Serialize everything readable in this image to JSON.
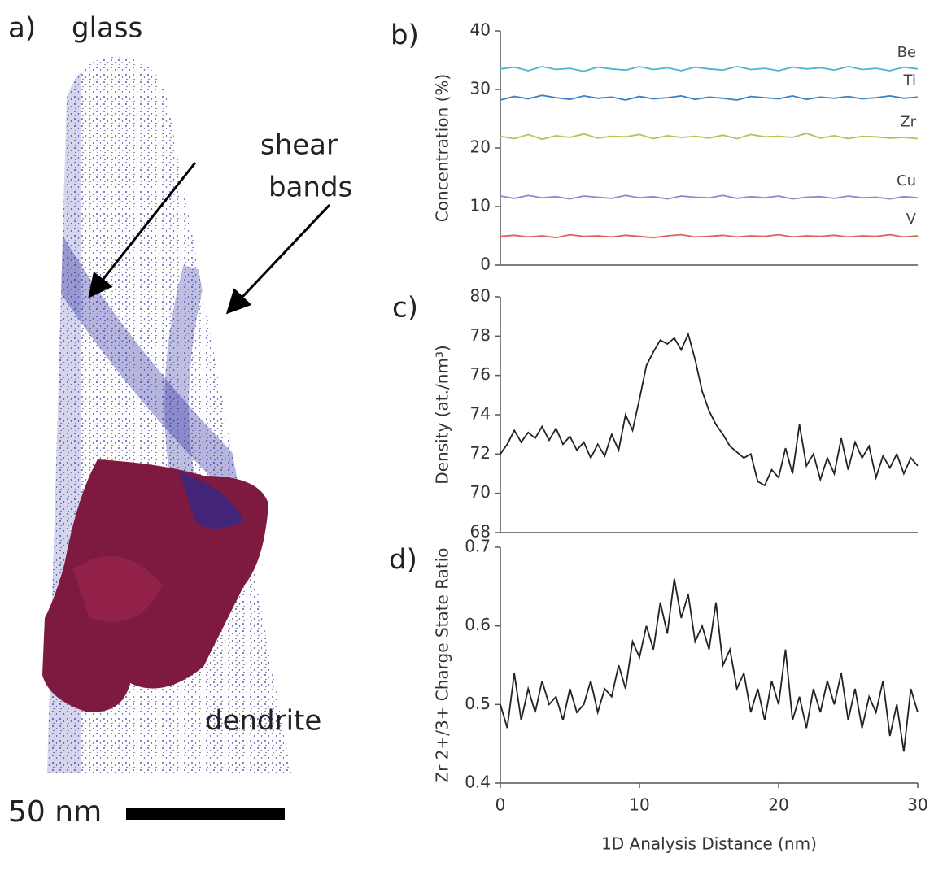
{
  "panel_a": {
    "label": "a)",
    "glass": "glass",
    "shear_bands": [
      "shear",
      "bands"
    ],
    "dendrite": "dendrite",
    "scale_bar": "50 nm"
  },
  "chart_data": [
    {
      "type": "line",
      "panel_label": "b)",
      "ylabel": "Concentration (%)",
      "xlim": [
        0,
        30
      ],
      "ylim": [
        0,
        40
      ],
      "yticks": [
        0,
        10,
        20,
        30,
        40
      ],
      "x": [
        0,
        1,
        2,
        3,
        4,
        5,
        6,
        7,
        8,
        9,
        10,
        11,
        12,
        13,
        14,
        15,
        16,
        17,
        18,
        19,
        20,
        21,
        22,
        23,
        24,
        25,
        26,
        27,
        28,
        29,
        30
      ],
      "series": [
        {
          "name": "Be",
          "color": "#4ab7cf",
          "values": [
            33.5,
            33.8,
            33.2,
            33.9,
            33.4,
            33.6,
            33.1,
            33.8,
            33.5,
            33.3,
            33.9,
            33.4,
            33.7,
            33.2,
            33.8,
            33.5,
            33.3,
            33.9,
            33.4,
            33.6,
            33.2,
            33.8,
            33.5,
            33.7,
            33.3,
            33.9,
            33.4,
            33.6,
            33.2,
            33.8,
            33.5
          ]
        },
        {
          "name": "Ti",
          "color": "#3b7fc2",
          "values": [
            28.2,
            28.8,
            28.4,
            29.0,
            28.6,
            28.3,
            28.9,
            28.5,
            28.7,
            28.2,
            28.8,
            28.4,
            28.6,
            28.9,
            28.3,
            28.7,
            28.5,
            28.2,
            28.8,
            28.6,
            28.4,
            28.9,
            28.3,
            28.7,
            28.5,
            28.8,
            28.4,
            28.6,
            28.9,
            28.5,
            28.7
          ]
        },
        {
          "name": "Zr",
          "color": "#a6c954",
          "values": [
            22.0,
            21.6,
            22.3,
            21.5,
            22.1,
            21.8,
            22.4,
            21.7,
            22.0,
            21.9,
            22.3,
            21.6,
            22.1,
            21.8,
            22.0,
            21.7,
            22.2,
            21.6,
            22.3,
            21.9,
            22.0,
            21.8,
            22.5,
            21.7,
            22.1,
            21.6,
            22.0,
            21.9,
            21.7,
            21.8,
            21.6
          ]
        },
        {
          "name": "Cu",
          "color": "#9a80cf",
          "values": [
            11.8,
            11.4,
            11.9,
            11.5,
            11.7,
            11.3,
            11.8,
            11.6,
            11.4,
            11.9,
            11.5,
            11.7,
            11.3,
            11.8,
            11.6,
            11.5,
            11.9,
            11.4,
            11.7,
            11.5,
            11.8,
            11.3,
            11.6,
            11.7,
            11.4,
            11.8,
            11.5,
            11.6,
            11.3,
            11.7,
            11.5
          ]
        },
        {
          "name": "V",
          "color": "#e0605a",
          "values": [
            4.9,
            5.1,
            4.8,
            5.0,
            4.7,
            5.2,
            4.9,
            5.0,
            4.8,
            5.1,
            4.9,
            4.7,
            5.0,
            5.2,
            4.8,
            4.9,
            5.1,
            4.8,
            5.0,
            4.9,
            5.2,
            4.8,
            5.0,
            4.9,
            5.1,
            4.8,
            5.0,
            4.9,
            5.2,
            4.8,
            5.0
          ]
        }
      ]
    },
    {
      "type": "line",
      "panel_label": "c)",
      "ylabel": "Density (at./nm³)",
      "xlim": [
        0,
        30
      ],
      "ylim": [
        68,
        80
      ],
      "yticks": [
        68,
        70,
        72,
        74,
        76,
        78,
        80
      ],
      "x": [
        0,
        0.5,
        1,
        1.5,
        2,
        2.5,
        3,
        3.5,
        4,
        4.5,
        5,
        5.5,
        6,
        6.5,
        7,
        7.5,
        8,
        8.5,
        9,
        9.5,
        10,
        10.5,
        11,
        11.5,
        12,
        12.5,
        13,
        13.5,
        14,
        14.5,
        15,
        15.5,
        16,
        16.5,
        17,
        17.5,
        18,
        18.5,
        19,
        19.5,
        20,
        20.5,
        21,
        21.5,
        22,
        22.5,
        23,
        23.5,
        24,
        24.5,
        25,
        25.5,
        26,
        26.5,
        27,
        27.5,
        28,
        28.5,
        29,
        29.5,
        30
      ],
      "series": [
        {
          "color": "#222222",
          "values": [
            72.0,
            72.5,
            73.2,
            72.6,
            73.1,
            72.8,
            73.4,
            72.7,
            73.3,
            72.5,
            72.9,
            72.2,
            72.6,
            71.8,
            72.5,
            71.9,
            73.0,
            72.2,
            74.0,
            73.2,
            74.8,
            76.5,
            77.2,
            77.8,
            77.6,
            77.9,
            77.3,
            78.1,
            76.8,
            75.2,
            74.2,
            73.5,
            73.0,
            72.4,
            72.1,
            71.8,
            72.0,
            70.6,
            70.4,
            71.2,
            70.8,
            72.3,
            71.0,
            73.5,
            71.4,
            72.0,
            70.7,
            71.8,
            71.0,
            72.8,
            71.2,
            72.6,
            71.8,
            72.4,
            70.8,
            71.9,
            71.3,
            72.0,
            71.0,
            71.8,
            71.4
          ]
        }
      ]
    },
    {
      "type": "line",
      "panel_label": "d)",
      "ylabel": "Zr 2+/3+ Charge State Ratio",
      "xlabel": "1D Analysis Distance (nm)",
      "xlim": [
        0,
        30
      ],
      "xticks": [
        0,
        10,
        20,
        30
      ],
      "ylim": [
        0.4,
        0.7
      ],
      "yticks": [
        0.4,
        0.5,
        0.6,
        0.7
      ],
      "x": [
        0,
        0.5,
        1,
        1.5,
        2,
        2.5,
        3,
        3.5,
        4,
        4.5,
        5,
        5.5,
        6,
        6.5,
        7,
        7.5,
        8,
        8.5,
        9,
        9.5,
        10,
        10.5,
        11,
        11.5,
        12,
        12.5,
        13,
        13.5,
        14,
        14.5,
        15,
        15.5,
        16,
        16.5,
        17,
        17.5,
        18,
        18.5,
        19,
        19.5,
        20,
        20.5,
        21,
        21.5,
        22,
        22.5,
        23,
        23.5,
        24,
        24.5,
        25,
        25.5,
        26,
        26.5,
        27,
        27.5,
        28,
        28.5,
        29,
        29.5,
        30
      ],
      "series": [
        {
          "color": "#222222",
          "values": [
            0.5,
            0.47,
            0.54,
            0.48,
            0.52,
            0.49,
            0.53,
            0.5,
            0.51,
            0.48,
            0.52,
            0.49,
            0.5,
            0.53,
            0.49,
            0.52,
            0.51,
            0.55,
            0.52,
            0.58,
            0.56,
            0.6,
            0.57,
            0.63,
            0.59,
            0.66,
            0.61,
            0.64,
            0.58,
            0.6,
            0.57,
            0.63,
            0.55,
            0.57,
            0.52,
            0.54,
            0.49,
            0.52,
            0.48,
            0.53,
            0.5,
            0.57,
            0.48,
            0.51,
            0.47,
            0.52,
            0.49,
            0.53,
            0.5,
            0.54,
            0.48,
            0.52,
            0.47,
            0.51,
            0.49,
            0.53,
            0.46,
            0.5,
            0.44,
            0.52,
            0.49
          ]
        }
      ]
    }
  ]
}
